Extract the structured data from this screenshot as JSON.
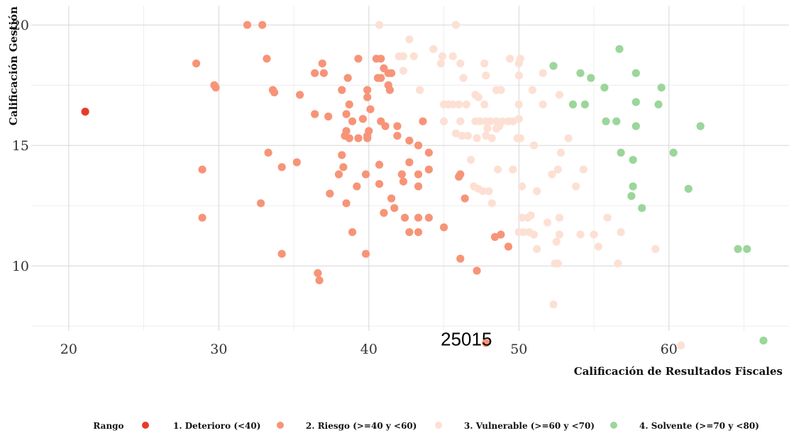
{
  "chart_data": {
    "type": "scatter",
    "xlabel": "Calificación de Resultados Fiscales",
    "ylabel": "Calificación Gestión",
    "xlim": [
      17.5,
      68
    ],
    "ylim": [
      7.3,
      20.8
    ],
    "x_ticks": [
      20,
      30,
      40,
      50,
      60
    ],
    "y_ticks": [
      10,
      15,
      20
    ],
    "x_tick_labels": [
      "20",
      "30",
      "40",
      "50",
      "60"
    ],
    "y_tick_labels": [
      "10",
      "15",
      "20"
    ],
    "grid": true,
    "legend": {
      "title": "Rango",
      "position": "bottom",
      "entries": [
        {
          "label": "1. Deterioro (<40)",
          "color": "#e8392b"
        },
        {
          "label": "2. Riesgo (>=40 y <60)",
          "color": "#f79478"
        },
        {
          "label": "3. Vulnerable (>=60 y <70)",
          "color": "#fde0d4"
        },
        {
          "label": "4. Solvente (>=70 y <80)",
          "color": "#9bd69a"
        }
      ]
    },
    "annotations": [
      {
        "text": "25015",
        "x": 46.5,
        "y": 6.7
      }
    ],
    "series": [
      {
        "name": "1. Deterioro (<40)",
        "color": "#e8392b",
        "points": [
          [
            21.1,
            16.4
          ]
        ]
      },
      {
        "name": "2. Riesgo (>=40 y <60)",
        "color": "#f79478",
        "points": [
          [
            31.9,
            20.0
          ],
          [
            32.9,
            20.0
          ],
          [
            28.5,
            18.4
          ],
          [
            33.2,
            18.6
          ],
          [
            36.9,
            18.4
          ],
          [
            37.0,
            18.0
          ],
          [
            36.4,
            18.0
          ],
          [
            29.7,
            17.5
          ],
          [
            29.8,
            17.4
          ],
          [
            33.6,
            17.3
          ],
          [
            33.7,
            17.2
          ],
          [
            35.4,
            17.1
          ],
          [
            36.4,
            16.3
          ],
          [
            37.3,
            16.2
          ],
          [
            38.2,
            17.3
          ],
          [
            38.6,
            17.8
          ],
          [
            38.7,
            16.7
          ],
          [
            38.5,
            16.3
          ],
          [
            39.3,
            18.6
          ],
          [
            39.9,
            17.3
          ],
          [
            39.9,
            17.0
          ],
          [
            40.1,
            16.5
          ],
          [
            40.5,
            18.6
          ],
          [
            40.8,
            18.6
          ],
          [
            40.6,
            17.8
          ],
          [
            40.8,
            17.8
          ],
          [
            41.0,
            18.2
          ],
          [
            41.3,
            18.0
          ],
          [
            41.5,
            18.0
          ],
          [
            41.3,
            17.5
          ],
          [
            41.4,
            17.3
          ],
          [
            39.6,
            16.1
          ],
          [
            38.9,
            16.0
          ],
          [
            40.8,
            16.0
          ],
          [
            41.1,
            15.8
          ],
          [
            40.0,
            15.6
          ],
          [
            38.5,
            15.6
          ],
          [
            38.4,
            15.4
          ],
          [
            38.7,
            15.3
          ],
          [
            39.3,
            15.3
          ],
          [
            39.9,
            15.4
          ],
          [
            39.9,
            15.3
          ],
          [
            41.9,
            15.8
          ],
          [
            41.9,
            15.4
          ],
          [
            42.7,
            15.2
          ],
          [
            43.3,
            15.0
          ],
          [
            43.6,
            16.0
          ],
          [
            44.0,
            14.7
          ],
          [
            33.3,
            14.7
          ],
          [
            35.2,
            14.3
          ],
          [
            34.2,
            14.1
          ],
          [
            38.2,
            14.6
          ],
          [
            38.3,
            14.1
          ],
          [
            38.0,
            13.8
          ],
          [
            40.7,
            14.2
          ],
          [
            42.7,
            14.3
          ],
          [
            44.0,
            14.0
          ],
          [
            43.3,
            13.8
          ],
          [
            42.2,
            13.8
          ],
          [
            42.3,
            13.5
          ],
          [
            39.8,
            13.8
          ],
          [
            39.2,
            13.3
          ],
          [
            40.7,
            13.4
          ],
          [
            43.3,
            13.3
          ],
          [
            37.4,
            13.0
          ],
          [
            38.5,
            12.6
          ],
          [
            41.5,
            12.8
          ],
          [
            41.7,
            12.4
          ],
          [
            41.0,
            12.2
          ],
          [
            42.4,
            12.0
          ],
          [
            43.3,
            12.0
          ],
          [
            44.0,
            12.0
          ],
          [
            32.8,
            12.6
          ],
          [
            28.9,
            14.0
          ],
          [
            28.9,
            12.0
          ],
          [
            38.9,
            11.4
          ],
          [
            42.7,
            11.4
          ],
          [
            43.3,
            11.4
          ],
          [
            45.0,
            11.6
          ],
          [
            46.0,
            13.7
          ],
          [
            46.1,
            13.8
          ],
          [
            46.4,
            12.8
          ],
          [
            48.4,
            11.2
          ],
          [
            48.8,
            11.3
          ],
          [
            49.3,
            10.8
          ],
          [
            46.1,
            10.3
          ],
          [
            47.2,
            9.8
          ],
          [
            34.2,
            10.5
          ],
          [
            39.8,
            10.5
          ],
          [
            36.6,
            9.7
          ],
          [
            36.7,
            9.4
          ],
          [
            47.8,
            6.8
          ]
        ]
      },
      {
        "name": "3. Vulnerable (>=60 y <70)",
        "color": "#fde0d4",
        "points": [
          [
            40.7,
            20.0
          ],
          [
            45.8,
            20.0
          ],
          [
            42.7,
            19.4
          ],
          [
            44.3,
            19.0
          ],
          [
            42.0,
            18.7
          ],
          [
            42.3,
            18.7
          ],
          [
            43.0,
            18.7
          ],
          [
            44.9,
            18.7
          ],
          [
            45.6,
            18.7
          ],
          [
            44.8,
            18.4
          ],
          [
            46.1,
            18.4
          ],
          [
            47.7,
            18.4
          ],
          [
            49.4,
            18.6
          ],
          [
            50.1,
            18.6
          ],
          [
            50.0,
            18.4
          ],
          [
            42.3,
            18.1
          ],
          [
            46.3,
            17.8
          ],
          [
            47.8,
            17.9
          ],
          [
            48.5,
            17.3
          ],
          [
            48.8,
            17.3
          ],
          [
            50.0,
            17.9
          ],
          [
            51.6,
            18.0
          ],
          [
            50.9,
            17.3
          ],
          [
            52.7,
            17.1
          ],
          [
            43.4,
            17.3
          ],
          [
            47.1,
            17.1
          ],
          [
            45.0,
            16.7
          ],
          [
            45.3,
            16.7
          ],
          [
            45.6,
            16.7
          ],
          [
            46.0,
            16.7
          ],
          [
            46.5,
            16.7
          ],
          [
            47.3,
            17.0
          ],
          [
            47.7,
            16.7
          ],
          [
            50.0,
            16.7
          ],
          [
            51.6,
            16.7
          ],
          [
            45.0,
            16.0
          ],
          [
            46.1,
            16.0
          ],
          [
            47.1,
            16.0
          ],
          [
            47.4,
            16.0
          ],
          [
            47.8,
            16.0
          ],
          [
            48.1,
            16.0
          ],
          [
            48.5,
            16.0
          ],
          [
            48.9,
            16.0
          ],
          [
            49.3,
            16.0
          ],
          [
            49.6,
            16.0
          ],
          [
            50.0,
            16.1
          ],
          [
            47.9,
            15.7
          ],
          [
            48.5,
            15.7
          ],
          [
            48.7,
            15.8
          ],
          [
            45.8,
            15.5
          ],
          [
            46.2,
            15.4
          ],
          [
            46.6,
            15.4
          ],
          [
            47.2,
            15.3
          ],
          [
            47.8,
            15.4
          ],
          [
            48.2,
            15.3
          ],
          [
            49.9,
            15.3
          ],
          [
            50.1,
            15.3
          ],
          [
            51.0,
            15.0
          ],
          [
            52.8,
            14.7
          ],
          [
            53.3,
            15.3
          ],
          [
            46.8,
            14.4
          ],
          [
            48.6,
            14.0
          ],
          [
            49.6,
            14.0
          ],
          [
            52.6,
            14.0
          ],
          [
            54.3,
            14.0
          ],
          [
            52.2,
            13.8
          ],
          [
            47.0,
            13.3
          ],
          [
            47.3,
            13.2
          ],
          [
            47.6,
            13.1
          ],
          [
            48.0,
            13.1
          ],
          [
            50.2,
            13.3
          ],
          [
            51.2,
            13.1
          ],
          [
            53.8,
            13.3
          ],
          [
            48.2,
            12.6
          ],
          [
            50.2,
            12.0
          ],
          [
            50.6,
            12.0
          ],
          [
            50.8,
            12.1
          ],
          [
            51.9,
            11.8
          ],
          [
            52.7,
            12.0
          ],
          [
            55.9,
            12.0
          ],
          [
            50.0,
            11.4
          ],
          [
            50.3,
            11.4
          ],
          [
            50.7,
            11.4
          ],
          [
            51.0,
            11.3
          ],
          [
            52.7,
            11.3
          ],
          [
            54.1,
            11.3
          ],
          [
            55.0,
            11.3
          ],
          [
            56.8,
            11.4
          ],
          [
            51.2,
            10.7
          ],
          [
            52.5,
            11.0
          ],
          [
            55.3,
            10.8
          ],
          [
            59.1,
            10.7
          ],
          [
            52.4,
            10.1
          ],
          [
            52.6,
            10.1
          ],
          [
            56.6,
            10.1
          ],
          [
            52.3,
            8.4
          ],
          [
            60.8,
            6.7
          ]
        ]
      },
      {
        "name": "4. Solvente (>=70 y <80)",
        "color": "#9bd69a",
        "points": [
          [
            56.7,
            19.0
          ],
          [
            52.3,
            18.3
          ],
          [
            54.1,
            18.0
          ],
          [
            54.8,
            17.8
          ],
          [
            57.8,
            18.0
          ],
          [
            55.7,
            17.4
          ],
          [
            59.5,
            17.4
          ],
          [
            53.6,
            16.7
          ],
          [
            54.4,
            16.7
          ],
          [
            57.8,
            16.8
          ],
          [
            59.3,
            16.7
          ],
          [
            55.8,
            16.0
          ],
          [
            56.5,
            16.0
          ],
          [
            57.8,
            15.8
          ],
          [
            62.1,
            15.8
          ],
          [
            56.8,
            14.7
          ],
          [
            57.6,
            14.4
          ],
          [
            60.3,
            14.7
          ],
          [
            57.6,
            13.3
          ],
          [
            61.3,
            13.2
          ],
          [
            57.5,
            12.9
          ],
          [
            58.2,
            12.4
          ],
          [
            64.6,
            10.7
          ],
          [
            65.2,
            10.7
          ],
          [
            66.3,
            6.9
          ]
        ]
      }
    ]
  }
}
